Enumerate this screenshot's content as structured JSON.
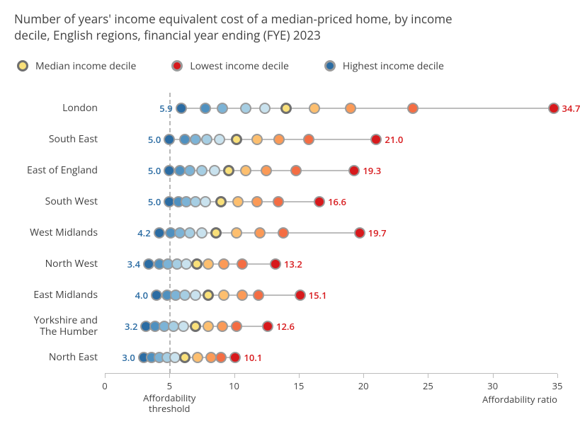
{
  "title": "Number of years' income equivalent cost of a median-priced home, by income decile, English regions, financial year ending (FYE) 2023",
  "legend": {
    "median": "Median income decile",
    "lowest": "Lowest income decile",
    "highest": "Highest income decile"
  },
  "colors": {
    "median_fill": "#f9e07a",
    "median_ring": "#6f6f6f",
    "lowest": "#d7191c",
    "highest": "#2b6ca3",
    "ring_grey": "#9a9a9a",
    "connector": "#bdbdbd",
    "threshold": "#b8b8b8",
    "text": "#414141",
    "gradient": [
      "#2b6ca3",
      "#4f90bf",
      "#7cb3d6",
      "#a6cee3",
      "#c9e2ee",
      "#fce38a",
      "#fdbf6f",
      "#fb9a57",
      "#f46d43",
      "#d7191c"
    ]
  },
  "xlim": [
    0,
    35
  ],
  "xticks": [
    0,
    5,
    10,
    15,
    20,
    25,
    30,
    35
  ],
  "threshold_x": 5,
  "threshold_label": "Affordability\nthreshold",
  "x_axis_label": "Affordability ratio",
  "marker_radius": 8,
  "regions": [
    {
      "name": "London",
      "high": 5.9,
      "low": 34.7,
      "points": [
        5.9,
        7.8,
        9.1,
        10.9,
        12.4,
        14.0,
        16.2,
        19.0,
        23.8,
        34.7
      ]
    },
    {
      "name": "South East",
      "high": 5.0,
      "low": 21.0,
      "points": [
        5.0,
        6.2,
        7.0,
        7.9,
        8.9,
        10.2,
        11.8,
        13.5,
        15.8,
        21.0
      ]
    },
    {
      "name": "East of England",
      "high": 5.0,
      "low": 19.3,
      "points": [
        5.0,
        5.8,
        6.6,
        7.5,
        8.5,
        9.6,
        10.9,
        12.5,
        14.8,
        19.3
      ]
    },
    {
      "name": "South West",
      "high": 5.0,
      "low": 16.6,
      "points": [
        5.0,
        5.7,
        6.3,
        7.0,
        7.8,
        9.0,
        10.3,
        11.8,
        13.4,
        16.6
      ]
    },
    {
      "name": "West Midlands",
      "high": 4.2,
      "low": 19.7,
      "points": [
        4.2,
        5.1,
        5.8,
        6.6,
        7.5,
        8.6,
        10.2,
        12.0,
        13.8,
        19.7
      ]
    },
    {
      "name": "North West",
      "high": 3.4,
      "low": 13.2,
      "points": [
        3.4,
        4.2,
        4.9,
        5.6,
        6.3,
        7.1,
        8.0,
        9.2,
        10.6,
        13.2
      ]
    },
    {
      "name": "East Midlands",
      "high": 4.0,
      "low": 15.1,
      "points": [
        4.0,
        4.8,
        5.5,
        6.2,
        7.0,
        8.0,
        9.2,
        10.6,
        11.9,
        15.1
      ]
    },
    {
      "name": "Yorkshire and The Humber",
      "high": 3.2,
      "low": 12.6,
      "points": [
        3.2,
        3.9,
        4.6,
        5.3,
        6.1,
        7.0,
        8.0,
        9.1,
        10.2,
        12.6
      ]
    },
    {
      "name": "North East",
      "high": 3.0,
      "low": 10.1,
      "points": [
        3.0,
        3.6,
        4.2,
        4.8,
        5.4,
        6.2,
        7.2,
        8.2,
        9.0,
        10.1
      ]
    }
  ]
}
